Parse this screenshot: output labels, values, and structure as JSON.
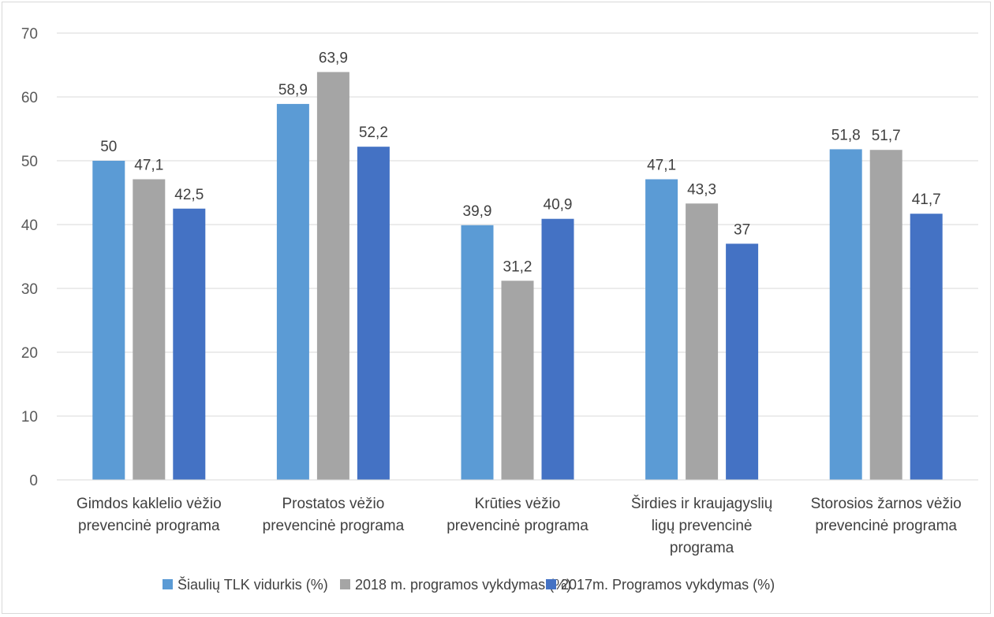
{
  "chart_data": {
    "type": "bar",
    "title": "",
    "xlabel": "",
    "ylabel": "",
    "ylim": [
      0,
      70
    ],
    "yticks": [
      0,
      10,
      20,
      30,
      40,
      50,
      60,
      70
    ],
    "grid": true,
    "legend_position": "bottom",
    "categories": [
      [
        "Gimdos kaklelio vėžio",
        "prevencinė programa"
      ],
      [
        "Prostatos vėžio",
        "prevencinė programa"
      ],
      [
        "Krūties vėžio",
        "prevencinė programa"
      ],
      [
        "Širdies ir kraujagyslių",
        "ligų prevencinė",
        "programa"
      ],
      [
        "Storosios žarnos vėžio",
        "prevencinė programa"
      ]
    ],
    "series": [
      {
        "name": "Šiaulių TLK vidurkis (%)",
        "color": "#5B9BD5",
        "values": [
          50,
          58.9,
          39.9,
          47.1,
          51.8
        ],
        "labels": [
          "50",
          "58,9",
          "39,9",
          "47,1",
          "51,8"
        ]
      },
      {
        "name": "2018 m. programos vykdymas (%)",
        "color": "#A5A5A5",
        "values": [
          47.1,
          63.9,
          31.2,
          43.3,
          51.7
        ],
        "labels": [
          "47,1",
          "63,9",
          "31,2",
          "43,3",
          "51,7"
        ]
      },
      {
        "name": "2017m. Programos vykdymas (%)",
        "color": "#4472C4",
        "values": [
          42.5,
          52.2,
          40.9,
          37,
          41.7
        ],
        "labels": [
          "42,5",
          "52,2",
          "40,9",
          "37",
          "41,7"
        ]
      }
    ]
  }
}
